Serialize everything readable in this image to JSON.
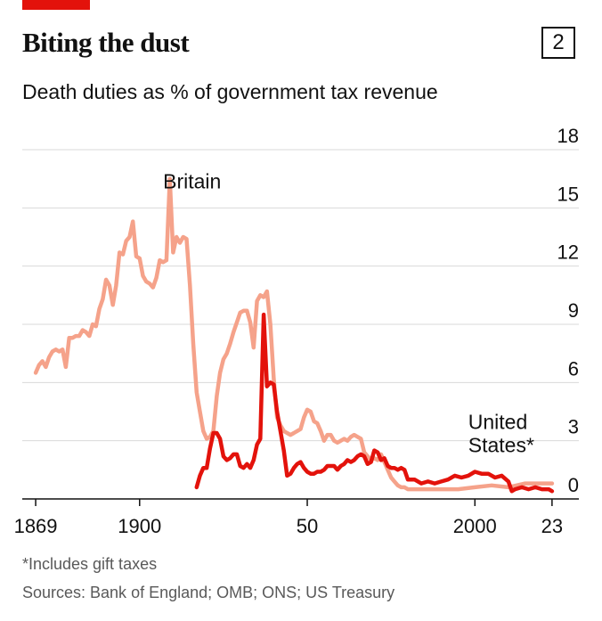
{
  "header": {
    "title": "Biting the dust",
    "chart_number": "2",
    "subtitle": "Death duties as % of government tax revenue"
  },
  "footer": {
    "footnote": "*Includes gift taxes",
    "sources": "Sources: Bank of England; OMB; ONS; US Treasury"
  },
  "colors": {
    "accent": "#e3120b",
    "britain": "#f5a28a",
    "united_states": "#e3120b",
    "grid": "#d9d9d9"
  },
  "chart_data": {
    "type": "line",
    "title": "Death duties as % of government tax revenue",
    "xlim": [
      1865,
      2031
    ],
    "ylim": [
      0,
      18
    ],
    "y_ticks": [
      "0",
      "3",
      "6",
      "9",
      "12",
      "15",
      "18"
    ],
    "y_tick_values": [
      0,
      3,
      6,
      9,
      12,
      15,
      18
    ],
    "x_ticks": [
      "1869",
      "1900",
      "50",
      "2000",
      "23"
    ],
    "x_tick_values": [
      1869,
      1900,
      1950,
      2000,
      2023
    ],
    "grid": true,
    "y_axis_side": "right",
    "series": [
      {
        "name": "Britain",
        "x": [
          1869,
          1870,
          1871,
          1872,
          1873,
          1874,
          1875,
          1876,
          1877,
          1878,
          1879,
          1880,
          1881,
          1882,
          1883,
          1884,
          1885,
          1886,
          1887,
          1888,
          1889,
          1890,
          1891,
          1892,
          1893,
          1894,
          1895,
          1896,
          1897,
          1898,
          1899,
          1900,
          1901,
          1902,
          1903,
          1904,
          1905,
          1906,
          1907,
          1908,
          1909,
          1910,
          1911,
          1912,
          1913,
          1914,
          1915,
          1916,
          1917,
          1918,
          1919,
          1920,
          1921,
          1922,
          1923,
          1924,
          1925,
          1926,
          1927,
          1928,
          1929,
          1930,
          1931,
          1932,
          1933,
          1934,
          1935,
          1936,
          1937,
          1938,
          1939,
          1940,
          1941,
          1942,
          1943,
          1944,
          1945,
          1946,
          1947,
          1948,
          1949,
          1950,
          1951,
          1952,
          1953,
          1954,
          1955,
          1956,
          1957,
          1958,
          1959,
          1960,
          1961,
          1962,
          1963,
          1964,
          1965,
          1966,
          1967,
          1968,
          1969,
          1970,
          1971,
          1972,
          1973,
          1974,
          1975,
          1976,
          1977,
          1978,
          1979,
          1980,
          1985,
          1990,
          1995,
          2000,
          2005,
          2010,
          2015,
          2020,
          2023
        ],
        "values": [
          6.5,
          6.9,
          7.1,
          6.8,
          7.3,
          7.6,
          7.7,
          7.6,
          7.7,
          6.8,
          8.3,
          8.3,
          8.4,
          8.4,
          8.7,
          8.6,
          8.4,
          9.0,
          8.9,
          9.8,
          10.3,
          11.3,
          11.0,
          10.0,
          11.0,
          12.7,
          12.6,
          13.3,
          13.5,
          14.3,
          12.5,
          12.4,
          11.5,
          11.2,
          11.1,
          10.9,
          11.4,
          12.3,
          12.2,
          12.3,
          16.5,
          12.7,
          13.5,
          13.2,
          13.5,
          13.4,
          11.0,
          8.0,
          5.5,
          4.5,
          3.5,
          3.1,
          3.2,
          3.5,
          5.3,
          6.5,
          7.2,
          7.5,
          8.0,
          8.6,
          9.1,
          9.6,
          9.7,
          9.7,
          9.1,
          7.8,
          10.2,
          10.5,
          10.4,
          10.7,
          9.0,
          6.2,
          4.2,
          3.8,
          3.5,
          3.4,
          3.3,
          3.4,
          3.5,
          3.6,
          4.2,
          4.6,
          4.5,
          4.0,
          3.9,
          3.5,
          3.0,
          3.3,
          3.3,
          3.0,
          2.9,
          3.0,
          3.1,
          3.0,
          3.2,
          3.3,
          3.2,
          3.1,
          2.4,
          2.2,
          2.0,
          2.1,
          2.0,
          2.3,
          1.9,
          1.5,
          1.1,
          0.9,
          0.7,
          0.6,
          0.6,
          0.5,
          0.5,
          0.5,
          0.5,
          0.6,
          0.7,
          0.6,
          0.8,
          0.8,
          0.8
        ]
      },
      {
        "name": "United States",
        "x": [
          1917,
          1918,
          1919,
          1920,
          1921,
          1922,
          1923,
          1924,
          1925,
          1926,
          1927,
          1928,
          1929,
          1930,
          1931,
          1932,
          1933,
          1934,
          1935,
          1936,
          1937,
          1938,
          1939,
          1940,
          1941,
          1942,
          1943,
          1944,
          1945,
          1946,
          1947,
          1948,
          1949,
          1950,
          1951,
          1952,
          1953,
          1954,
          1955,
          1956,
          1957,
          1958,
          1959,
          1960,
          1961,
          1962,
          1963,
          1964,
          1965,
          1966,
          1967,
          1968,
          1969,
          1970,
          1971,
          1972,
          1973,
          1974,
          1975,
          1976,
          1977,
          1978,
          1979,
          1980,
          1982,
          1984,
          1986,
          1988,
          1990,
          1992,
          1994,
          1996,
          1998,
          2000,
          2002,
          2004,
          2006,
          2008,
          2010,
          2011,
          2012,
          2014,
          2016,
          2018,
          2020,
          2022,
          2023
        ],
        "values": [
          0.6,
          1.2,
          1.6,
          1.6,
          2.6,
          3.4,
          3.4,
          3.1,
          2.2,
          2.0,
          2.1,
          2.3,
          2.3,
          1.7,
          1.6,
          1.8,
          1.6,
          2.0,
          2.8,
          3.1,
          9.5,
          5.8,
          6.0,
          5.9,
          4.5,
          3.5,
          2.5,
          1.2,
          1.3,
          1.6,
          1.8,
          1.9,
          1.6,
          1.4,
          1.3,
          1.3,
          1.4,
          1.4,
          1.5,
          1.7,
          1.7,
          1.7,
          1.5,
          1.7,
          1.8,
          2.0,
          1.9,
          2.0,
          2.2,
          2.3,
          2.2,
          1.8,
          1.9,
          2.5,
          2.4,
          2.0,
          2.1,
          1.7,
          1.6,
          1.6,
          1.5,
          1.6,
          1.5,
          1.0,
          1.0,
          0.8,
          0.9,
          0.8,
          0.9,
          1.0,
          1.2,
          1.1,
          1.2,
          1.4,
          1.3,
          1.3,
          1.1,
          1.2,
          0.9,
          0.4,
          0.5,
          0.6,
          0.5,
          0.6,
          0.5,
          0.5,
          0.4
        ]
      }
    ],
    "annotations": [
      {
        "text": "Britain",
        "series": "Britain"
      },
      {
        "text": "United",
        "series": "United States"
      },
      {
        "text": "States*",
        "series": "United States"
      }
    ]
  }
}
